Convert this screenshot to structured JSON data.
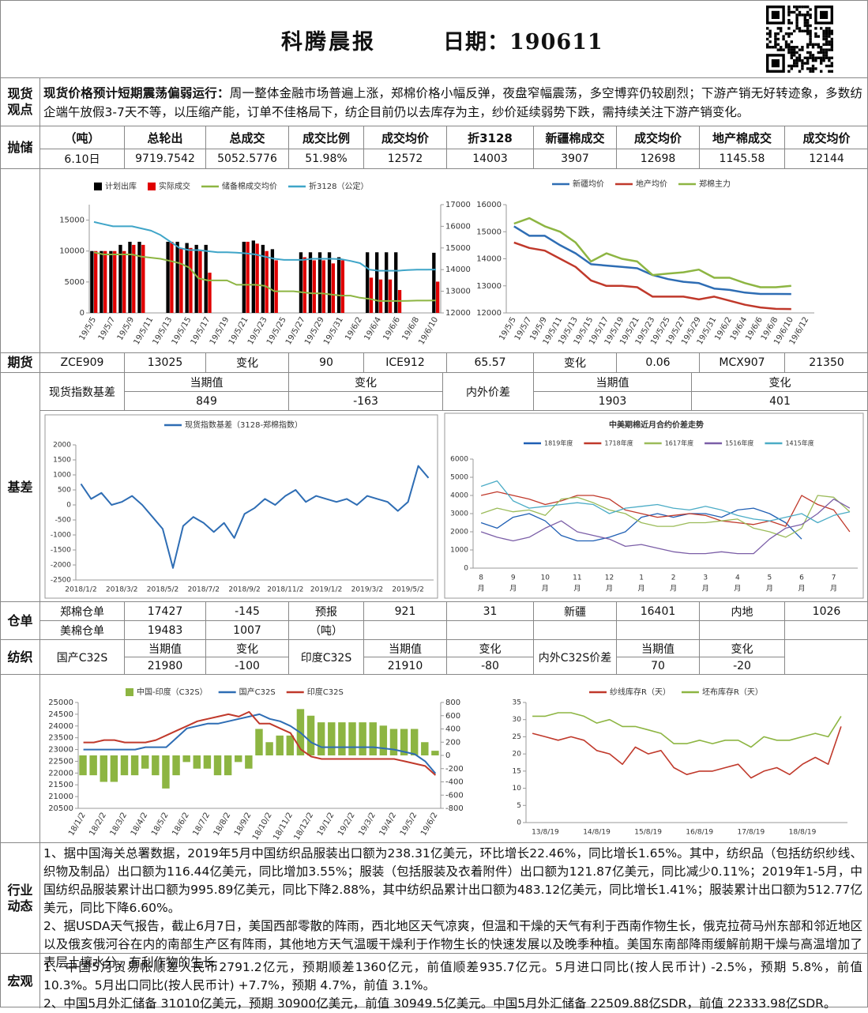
{
  "header": {
    "title": "科腾晨报",
    "date": "日期：190611"
  },
  "spot_view": {
    "label": "现货观点",
    "lead": "现货价格预计短期震荡偏弱运行：",
    "text": "周一整体金融市场普遍上涨，郑棉价格小幅反弹，夜盘窄幅震荡，多空博弈仍较剧烈；下游产销无好转迹象，多数纺企端午放假3-7天不等，以压缩产能，订单不佳格局下，纺企目前仍以去库存为主，纱价延续弱势下跌，需持续关注下游产销变化。"
  },
  "auction": {
    "label": "抛储",
    "header": [
      "（吨）",
      "总轮出",
      "总成交",
      "成交比例",
      "成交均价",
      "折3128",
      "新疆棉成交",
      "成交均价",
      "地产棉成交",
      "成交均价"
    ],
    "row": [
      "6.10日",
      "9719.7542",
      "5052.5776",
      "51.98%",
      "12572",
      "14003",
      "3907",
      "12698",
      "1145.58",
      "12144"
    ]
  },
  "futures": {
    "label": "期货",
    "row": [
      "ZCE909",
      "13025",
      "变化",
      "90",
      "ICE912",
      "65.57",
      "变化",
      "0.06",
      "MCX907",
      "21350"
    ]
  },
  "basis": {
    "label": "基差",
    "rows": [
      [
        "现货指数基差",
        "当期值",
        "变化",
        "内外价差",
        "当期值",
        "变化"
      ],
      [
        "849",
        "-163",
        "1903",
        "401"
      ]
    ]
  },
  "warehouse": {
    "label": "仓单",
    "rows": [
      [
        "郑棉仓单",
        "17427",
        "-145",
        "预报",
        "921",
        "31",
        "新疆",
        "16401",
        "内地",
        "1026"
      ],
      [
        "美棉仓单",
        "19483",
        "1007",
        "（吨）"
      ]
    ]
  },
  "textile": {
    "label": "纺织",
    "rows": [
      [
        "国产C32S",
        "当期值",
        "变化",
        "印度C32S",
        "当期值",
        "变化",
        "内外C32S价差",
        "当期值",
        "变化"
      ],
      [
        "21980",
        "-100",
        "21910",
        "-80",
        "70",
        "-20"
      ]
    ]
  },
  "industry": {
    "label": "行业动态",
    "paragraphs": [
      "1、据中国海关总署数据，2019年5月中国纺织品服装出口额为238.31亿美元，环比增长22.46%，同比增长1.65%。其中，纺织品（包括纺织纱线、织物及制品）出口额为116.44亿美元，同比增加3.55%；服装（包括服装及衣着附件）出口额为121.87亿美元，同比减少0.11%；2019年1-5月，中国纺织品服装累计出口额为995.89亿美元，同比下降2.88%，其中纺织品累计出口额为483.12亿美元，同比增长1.41%；服装累计出口额为512.77亿美元，同比下降6.60%。",
      "2、据USDA天气报告，截止6月7日，美国西部零散的阵雨，西北地区天气凉爽，但温和干燥的天气有利于西南作物生长，俄克拉荷马州东部和邻近地区以及俄亥俄河谷在内的南部生产区有阵雨，其他地方天气温暖干燥利于作物生长的快速发展以及晚季种植。美国东南部降雨缓解前期干燥与高温增加了表层土壤水分，有利作物的生长"
    ]
  },
  "macro": {
    "label": "宏观",
    "paragraphs": [
      "1、中国5月贸易帐顺差人民币2791.2亿元，预期顺差1360亿元，前值顺差935.7亿元。5月进口同比(按人民币计) -2.5%，预期 5.8%，前值 10.3%。5月出口同比(按人民币计) +7.7%，预期 4.7%，前值 3.1%。",
      "2、中国5月外汇储备 31010亿美元，预期 30900亿美元，前值 30949.5亿美元。中国5月外汇储备 22509.88亿SDR，前值 22333.98亿SDR。"
    ]
  },
  "chart_data": [
    {
      "type": "bar",
      "categories": [
        "19/5/5",
        null,
        "19/5/7",
        null,
        "19/5/9",
        null,
        "19/5/11",
        null,
        "19/5/13",
        null,
        "19/5/15",
        null,
        "19/5/17",
        null,
        "19/5/19",
        null,
        "19/5/21",
        null,
        "19/5/23",
        null,
        "19/5/25",
        null,
        "19/5/27",
        null,
        "19/5/29",
        null,
        "19/5/31",
        null,
        "19/6/2",
        null,
        "19/6/4",
        null,
        "19/6/6",
        null,
        "19/6/8",
        null,
        "19/6/10"
      ],
      "ylim": [
        0,
        17500
      ],
      "yticks": [
        0,
        5000,
        10000,
        15000
      ],
      "y2lim": [
        12000,
        17000
      ],
      "y2ticks": [
        12000,
        13000,
        14000,
        15000,
        16000,
        17000
      ],
      "series": [
        {
          "name": "计划出库",
          "type": "bar",
          "color": "#000000",
          "values": [
            10000,
            10000,
            10000,
            11000,
            11500,
            11500,
            null,
            null,
            11500,
            11500,
            11300,
            11000,
            11000,
            null,
            null,
            null,
            11500,
            11700,
            11000,
            10300,
            null,
            null,
            9800,
            9800,
            9800,
            9800,
            9000,
            null,
            null,
            9800,
            9800,
            9800,
            9800,
            null,
            null,
            null,
            9720
          ]
        },
        {
          "name": "实际成交",
          "type": "bar",
          "color": "#e00000",
          "values": [
            10000,
            10000,
            10000,
            10000,
            11000,
            11000,
            null,
            null,
            11500,
            10500,
            10500,
            10000,
            6500,
            null,
            null,
            null,
            11500,
            11200,
            10000,
            8500,
            null,
            null,
            9000,
            8500,
            8500,
            8000,
            8500,
            null,
            null,
            5700,
            5400,
            5400,
            3700,
            null,
            null,
            null,
            5053
          ]
        },
        {
          "name": "储备棉成交均价",
          "type": "line",
          "axis": "y2",
          "color": "#8db542",
          "values": [
            14800,
            14700,
            14700,
            14700,
            14700,
            14600,
            14550,
            14500,
            14400,
            14300,
            14100,
            13600,
            13500,
            13500,
            13500,
            13300,
            13300,
            13300,
            13250,
            13000,
            13000,
            13000,
            12950,
            12900,
            12900,
            12850,
            12800,
            12800,
            12700,
            12650,
            12550,
            12550,
            12550,
            12560,
            12570,
            12570,
            12572
          ]
        },
        {
          "name": "折3128（公定）",
          "type": "line",
          "axis": "y2",
          "color": "#3fa5c8",
          "values": [
            16200,
            16100,
            16000,
            16000,
            16000,
            15900,
            15800,
            15600,
            15300,
            15000,
            14900,
            14900,
            14850,
            14800,
            14800,
            14780,
            14750,
            14700,
            14600,
            14500,
            14450,
            14450,
            14450,
            14500,
            14500,
            14500,
            14480,
            14400,
            14300,
            14000,
            13950,
            13950,
            13950,
            13980,
            14000,
            14000,
            14003
          ]
        }
      ]
    },
    {
      "type": "line",
      "categories": [
        "19/5/5",
        "19/5/7",
        "19/5/9",
        "19/5/11",
        "19/5/13",
        "19/5/15",
        "19/5/17",
        "19/5/19",
        "19/5/21",
        "19/5/23",
        "19/5/25",
        "19/5/27",
        "19/5/29",
        "19/5/31",
        "19/6/2",
        "19/6/4",
        "19/6/6",
        "19/6/8",
        "19/6/10",
        "19/6/12"
      ],
      "ylim": [
        12000,
        16000
      ],
      "yticks": [
        12000,
        13000,
        14000,
        15000,
        16000
      ],
      "series": [
        {
          "name": "新疆均价",
          "color": "#2e6db4",
          "values": [
            15200,
            14850,
            14850,
            14500,
            14200,
            13800,
            13750,
            13700,
            13650,
            13400,
            13250,
            13150,
            13100,
            12900,
            12850,
            12750,
            12700,
            12700,
            12698,
            null
          ]
        },
        {
          "name": "地产均价",
          "color": "#c0392b",
          "values": [
            14600,
            14400,
            14300,
            14000,
            13700,
            13200,
            13000,
            13000,
            12950,
            12600,
            12600,
            12600,
            12500,
            12600,
            12450,
            12300,
            12200,
            12150,
            12144,
            null
          ]
        },
        {
          "name": "郑棉主力",
          "color": "#8db542",
          "values": [
            15300,
            15500,
            15200,
            15000,
            14600,
            13900,
            14200,
            14000,
            13900,
            13400,
            13450,
            13500,
            13600,
            13300,
            13300,
            13100,
            12950,
            12950,
            13000,
            null
          ]
        }
      ]
    },
    {
      "type": "line",
      "categories": [
        "2018/1/2",
        null,
        null,
        null,
        "2018/3/2",
        null,
        null,
        null,
        "2018/5/2",
        null,
        null,
        null,
        "2018/7/2",
        null,
        null,
        null,
        "2018/9/2",
        null,
        null,
        null,
        "2018/11/2",
        null,
        null,
        null,
        "2019/1/2",
        null,
        null,
        null,
        "2019/3/2",
        null,
        null,
        null,
        "2019/5/2",
        null,
        null
      ],
      "ylim": [
        -2500,
        2000
      ],
      "yticks": [
        -2500,
        -2000,
        -1500,
        -1000,
        -500,
        0,
        500,
        1000,
        1500,
        2000
      ],
      "series": [
        {
          "name": "现货指数基差（3128-郑棉指数）",
          "color": "#2e6db4",
          "values": [
            700,
            200,
            400,
            0,
            100,
            300,
            0,
            -400,
            -800,
            -2100,
            -700,
            -400,
            -600,
            -900,
            -600,
            -1100,
            -300,
            -100,
            200,
            0,
            300,
            500,
            100,
            300,
            200,
            100,
            200,
            0,
            300,
            200,
            100,
            -200,
            100,
            1300,
            900
          ]
        }
      ]
    },
    {
      "type": "line",
      "title": "中美期棉近月合约价差走势",
      "x_unit": "月",
      "categories": [
        "8",
        null,
        "9",
        null,
        "10",
        null,
        "11",
        null,
        "12",
        null,
        "1",
        null,
        "2",
        null,
        "3",
        null,
        "4",
        null,
        "5",
        null,
        "6",
        null,
        "7",
        null
      ],
      "ylim": [
        0,
        6000
      ],
      "yticks": [
        0,
        1000,
        2000,
        3000,
        4000,
        5000,
        6000
      ],
      "series": [
        {
          "name": "1819年度",
          "color": "#1f5fb4",
          "values": [
            2500,
            2200,
            2800,
            3000,
            2600,
            1800,
            1500,
            1500,
            1700,
            2000,
            2800,
            3000,
            2800,
            3000,
            3000,
            2800,
            3200,
            3300,
            3000,
            2500,
            1600,
            null,
            null,
            null
          ]
        },
        {
          "name": "1718年度",
          "color": "#c0392b",
          "values": [
            4000,
            4200,
            4000,
            3800,
            3500,
            3700,
            4000,
            4000,
            3800,
            3200,
            3000,
            2800,
            2900,
            3000,
            2900,
            2600,
            2500,
            2400,
            2600,
            2300,
            4000,
            3500,
            3200,
            2000
          ]
        },
        {
          "name": "1617年度",
          "color": "#9bbb59",
          "values": [
            3000,
            3300,
            3100,
            3200,
            2900,
            3800,
            3900,
            3600,
            3200,
            3000,
            2500,
            2300,
            2300,
            2500,
            2500,
            2600,
            2700,
            2200,
            2000,
            1700,
            2200,
            4000,
            3900,
            3100
          ]
        },
        {
          "name": "1516年度",
          "color": "#7b5ea7",
          "values": [
            2000,
            1700,
            1500,
            1700,
            2200,
            2600,
            2000,
            1800,
            1600,
            1200,
            1300,
            1100,
            900,
            800,
            800,
            900,
            800,
            800,
            1600,
            2200,
            2400,
            3000,
            3800,
            3300
          ]
        },
        {
          "name": "1415年度",
          "color": "#4bacc6",
          "values": [
            4500,
            4800,
            3700,
            3300,
            3400,
            3500,
            3600,
            3500,
            3000,
            3300,
            3400,
            3500,
            3300,
            3200,
            3400,
            3200,
            2900,
            2700,
            2600,
            2800,
            3000,
            2500,
            2900,
            3100
          ]
        }
      ]
    },
    {
      "type": "bar",
      "categories": [
        "18/1/2",
        null,
        "18/2/2",
        null,
        "18/3/2",
        null,
        "18/4/2",
        null,
        "18/5/2",
        null,
        "18/6/2",
        null,
        "18/7/2",
        null,
        "18/8/2",
        null,
        "18/9/2",
        null,
        "18/10/2",
        null,
        "18/11/2",
        null,
        "18/12/2",
        null,
        "19/1/2",
        null,
        "19/2/2",
        null,
        "19/3/2",
        null,
        "19/4/2",
        null,
        "19/5/2",
        null,
        "19/6/2"
      ],
      "ylim": [
        20500,
        25000
      ],
      "yticks": [
        20500,
        21000,
        21500,
        22000,
        22500,
        23000,
        23500,
        24000,
        24500,
        25000
      ],
      "y2lim": [
        -800,
        800
      ],
      "y2ticks": [
        -800,
        -600,
        -400,
        -200,
        0,
        200,
        400,
        600,
        800
      ],
      "series": [
        {
          "name": "中国-印度（C32S）",
          "type": "bar",
          "axis": "y2",
          "color": "#8db542",
          "values": [
            -300,
            -300,
            -400,
            -400,
            -300,
            -300,
            -200,
            -300,
            -500,
            -300,
            -100,
            -200,
            -200,
            -300,
            -300,
            -100,
            -200,
            400,
            200,
            300,
            300,
            700,
            600,
            500,
            500,
            500,
            500,
            500,
            500,
            450,
            400,
            400,
            400,
            200,
            70
          ]
        },
        {
          "name": "国产C32S",
          "type": "line",
          "color": "#2e6db4",
          "values": [
            23000,
            23000,
            23000,
            23000,
            23000,
            23000,
            23100,
            23100,
            23100,
            23500,
            23900,
            24000,
            24100,
            24100,
            24200,
            24300,
            24400,
            24500,
            24300,
            24200,
            24000,
            23700,
            23300,
            23100,
            23100,
            23100,
            23100,
            23100,
            23100,
            23050,
            23000,
            22900,
            22800,
            22500,
            21980
          ]
        },
        {
          "name": "印度C32S",
          "type": "line",
          "color": "#c0392b",
          "values": [
            23300,
            23300,
            23400,
            23400,
            23300,
            23300,
            23300,
            23400,
            23600,
            23800,
            24000,
            24200,
            24300,
            24400,
            24500,
            24400,
            24600,
            24100,
            24100,
            23900,
            23700,
            23000,
            22700,
            22600,
            22600,
            22600,
            22600,
            22600,
            22600,
            22600,
            22600,
            22500,
            22400,
            22300,
            21910
          ]
        }
      ]
    },
    {
      "type": "line",
      "categories": [
        null,
        "13/8/19",
        null,
        null,
        null,
        "14/8/19",
        null,
        null,
        null,
        "15/8/19",
        null,
        null,
        null,
        "16/8/19",
        null,
        null,
        null,
        "17/8/19",
        null,
        null,
        null,
        "18/8/19",
        null,
        null,
        null
      ],
      "ylim": [
        0,
        35
      ],
      "yticks": [
        0,
        5,
        10,
        15,
        20,
        25,
        30,
        35
      ],
      "series": [
        {
          "name": "纱线库存R（天）",
          "color": "#c0392b",
          "values": [
            26,
            25,
            24,
            25,
            24,
            21,
            20,
            17,
            22,
            20,
            21,
            16,
            14,
            15,
            15,
            16,
            17,
            13,
            15,
            16,
            14,
            17,
            19,
            17,
            28
          ]
        },
        {
          "name": "坯布库存R（天）",
          "color": "#8db542",
          "values": [
            31,
            31,
            32,
            32,
            31,
            29,
            30,
            28,
            28,
            27,
            26,
            23,
            23,
            24,
            23,
            24,
            24,
            22,
            25,
            24,
            24,
            25,
            26,
            25,
            31
          ]
        }
      ]
    }
  ]
}
